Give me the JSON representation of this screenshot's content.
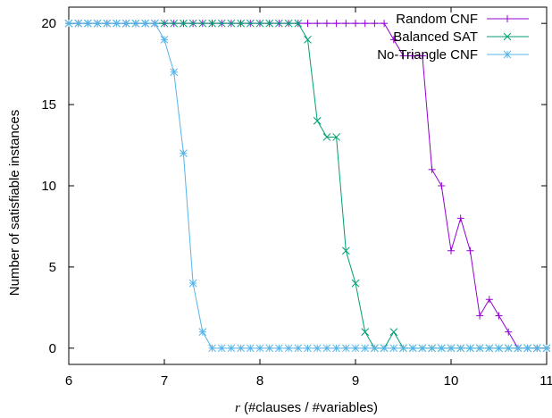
{
  "chart_data": {
    "type": "line",
    "title": "",
    "xlabel_var": "r",
    "xlabel_rest": " (#clauses / #variables)",
    "ylabel": "Number of satisfiable instances",
    "xlim": [
      6,
      11
    ],
    "ylim": [
      -1,
      21
    ],
    "xticks": [
      "6",
      "7",
      "8",
      "9",
      "10",
      "11"
    ],
    "yticks": [
      "0",
      "5",
      "10",
      "15",
      "20"
    ],
    "grid": false,
    "legend_position": "top-right",
    "x": [
      6.0,
      6.1,
      6.2,
      6.3,
      6.4,
      6.5,
      6.6,
      6.7,
      6.8,
      6.9,
      7.0,
      7.1,
      7.2,
      7.3,
      7.4,
      7.5,
      7.6,
      7.7,
      7.8,
      7.9,
      8.0,
      8.1,
      8.2,
      8.3,
      8.4,
      8.5,
      8.6,
      8.7,
      8.8,
      8.9,
      9.0,
      9.1,
      9.2,
      9.3,
      9.4,
      9.5,
      9.6,
      9.7,
      9.8,
      9.9,
      10.0,
      10.1,
      10.2,
      10.3,
      10.4,
      10.5,
      10.6,
      10.7,
      10.8,
      10.9,
      11.0
    ],
    "series": [
      {
        "name": "Random CNF",
        "color": "#9400d3",
        "marker": "plus",
        "values": [
          20,
          20,
          20,
          20,
          20,
          20,
          20,
          20,
          20,
          20,
          20,
          20,
          20,
          20,
          20,
          20,
          20,
          20,
          20,
          20,
          20,
          20,
          20,
          20,
          20,
          20,
          20,
          20,
          20,
          20,
          20,
          20,
          20,
          20,
          19,
          18,
          18,
          18,
          11,
          10,
          6,
          8,
          6,
          2,
          3,
          2,
          1,
          0,
          0,
          0,
          0
        ]
      },
      {
        "name": "Balanced SAT",
        "color": "#009e73",
        "marker": "x",
        "values": [
          20,
          20,
          20,
          20,
          20,
          20,
          20,
          20,
          20,
          20,
          20,
          20,
          20,
          20,
          20,
          20,
          20,
          20,
          20,
          20,
          20,
          20,
          20,
          20,
          20,
          19,
          14,
          13,
          13,
          6,
          4,
          1,
          0,
          0,
          1,
          0,
          0,
          0,
          0,
          0,
          0,
          0,
          0,
          0,
          0,
          0,
          0,
          0,
          0,
          0,
          0
        ]
      },
      {
        "name": "No-Triangle CNF",
        "color": "#56b4e9",
        "marker": "star",
        "values": [
          20,
          20,
          20,
          20,
          20,
          20,
          20,
          20,
          20,
          20,
          19,
          17,
          12,
          4,
          1,
          0,
          0,
          0,
          0,
          0,
          0,
          0,
          0,
          0,
          0,
          0,
          0,
          0,
          0,
          0,
          0,
          0,
          0,
          0,
          0,
          0,
          0,
          0,
          0,
          0,
          0,
          0,
          0,
          0,
          0,
          0,
          0,
          0,
          0,
          0,
          0
        ]
      }
    ]
  }
}
